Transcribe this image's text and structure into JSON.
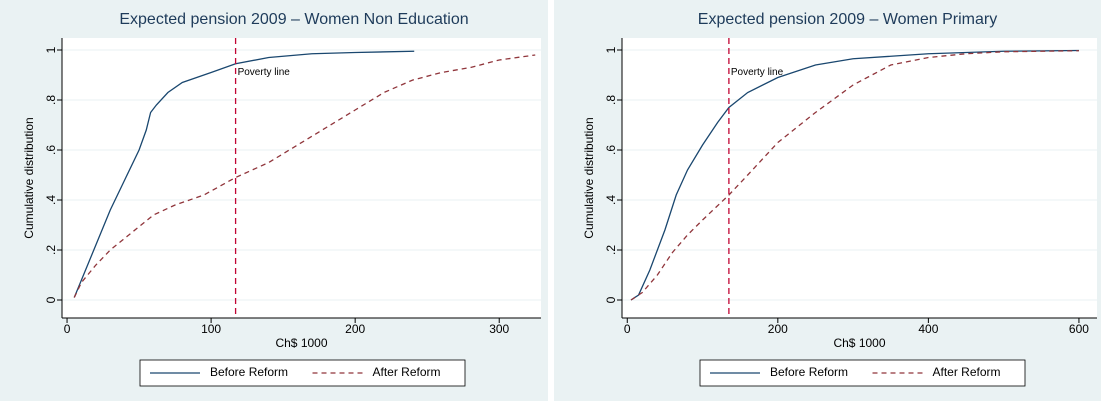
{
  "chart_data": [
    {
      "type": "line",
      "title": "Expected pension 2009 – Women Non Education",
      "x_label": "Ch$ 1000",
      "y_label": "Cumulative distribution",
      "xlim": [
        -3.5,
        329
      ],
      "ylim": [
        -0.072,
        1.048
      ],
      "xticks": [
        0,
        100,
        200,
        300
      ],
      "yticks": [
        0,
        {
          "value": 0.2,
          "label": ".2"
        },
        {
          "value": 0.4,
          "label": ".4"
        },
        {
          "value": 0.6,
          "label": ".6"
        },
        {
          "value": 0.8,
          "label": ".8"
        },
        1
      ],
      "grid": true,
      "vline": {
        "x": 117,
        "label": "Poverty line",
        "color": "#c10534"
      },
      "series": [
        {
          "name": "Before Reform",
          "color": "#1a476f",
          "dash": false,
          "x": [
            5,
            10,
            20,
            30,
            40,
            50,
            55,
            58,
            62,
            70,
            80,
            100,
            117,
            140,
            170,
            200,
            241
          ],
          "values": [
            0.01,
            0.08,
            0.22,
            0.36,
            0.48,
            0.6,
            0.68,
            0.75,
            0.78,
            0.83,
            0.87,
            0.91,
            0.945,
            0.97,
            0.985,
            0.99,
            0.995
          ]
        },
        {
          "name": "After Reform",
          "color": "#90353b",
          "dash": true,
          "x": [
            5,
            10,
            20,
            30,
            45,
            60,
            75,
            95,
            117,
            140,
            160,
            180,
            200,
            220,
            240,
            260,
            280,
            300,
            325
          ],
          "values": [
            0.01,
            0.07,
            0.14,
            0.2,
            0.27,
            0.34,
            0.38,
            0.42,
            0.49,
            0.55,
            0.62,
            0.69,
            0.76,
            0.83,
            0.88,
            0.91,
            0.93,
            0.96,
            0.98
          ]
        }
      ]
    },
    {
      "type": "line",
      "title": "Expected pension 2009 – Women Primary",
      "x_label": "Ch$ 1000",
      "y_label": "Cumulative distribution",
      "xlim": [
        -7,
        624
      ],
      "ylim": [
        -0.072,
        1.048
      ],
      "xticks": [
        0,
        200,
        400,
        600
      ],
      "yticks": [
        0,
        {
          "value": 0.2,
          "label": ".2"
        },
        {
          "value": 0.4,
          "label": ".4"
        },
        {
          "value": 0.6,
          "label": ".6"
        },
        {
          "value": 0.8,
          "label": ".8"
        },
        1
      ],
      "grid": true,
      "vline": {
        "x": 135,
        "label": "Poverty line",
        "color": "#c10534"
      },
      "series": [
        {
          "name": "Before Reform",
          "color": "#1a476f",
          "dash": false,
          "x": [
            5,
            15,
            30,
            50,
            65,
            80,
            100,
            120,
            135,
            160,
            200,
            250,
            300,
            400,
            500,
            600
          ],
          "values": [
            0,
            0.02,
            0.12,
            0.28,
            0.42,
            0.52,
            0.62,
            0.71,
            0.77,
            0.83,
            0.89,
            0.94,
            0.965,
            0.985,
            0.995,
            0.998
          ]
        },
        {
          "name": "After Reform",
          "color": "#90353b",
          "dash": true,
          "x": [
            5,
            20,
            40,
            60,
            80,
            100,
            135,
            160,
            200,
            250,
            300,
            350,
            400,
            450,
            500,
            600
          ],
          "values": [
            0,
            0.03,
            0.1,
            0.19,
            0.26,
            0.32,
            0.42,
            0.5,
            0.63,
            0.75,
            0.86,
            0.94,
            0.97,
            0.985,
            0.993,
            0.997
          ]
        }
      ]
    }
  ]
}
